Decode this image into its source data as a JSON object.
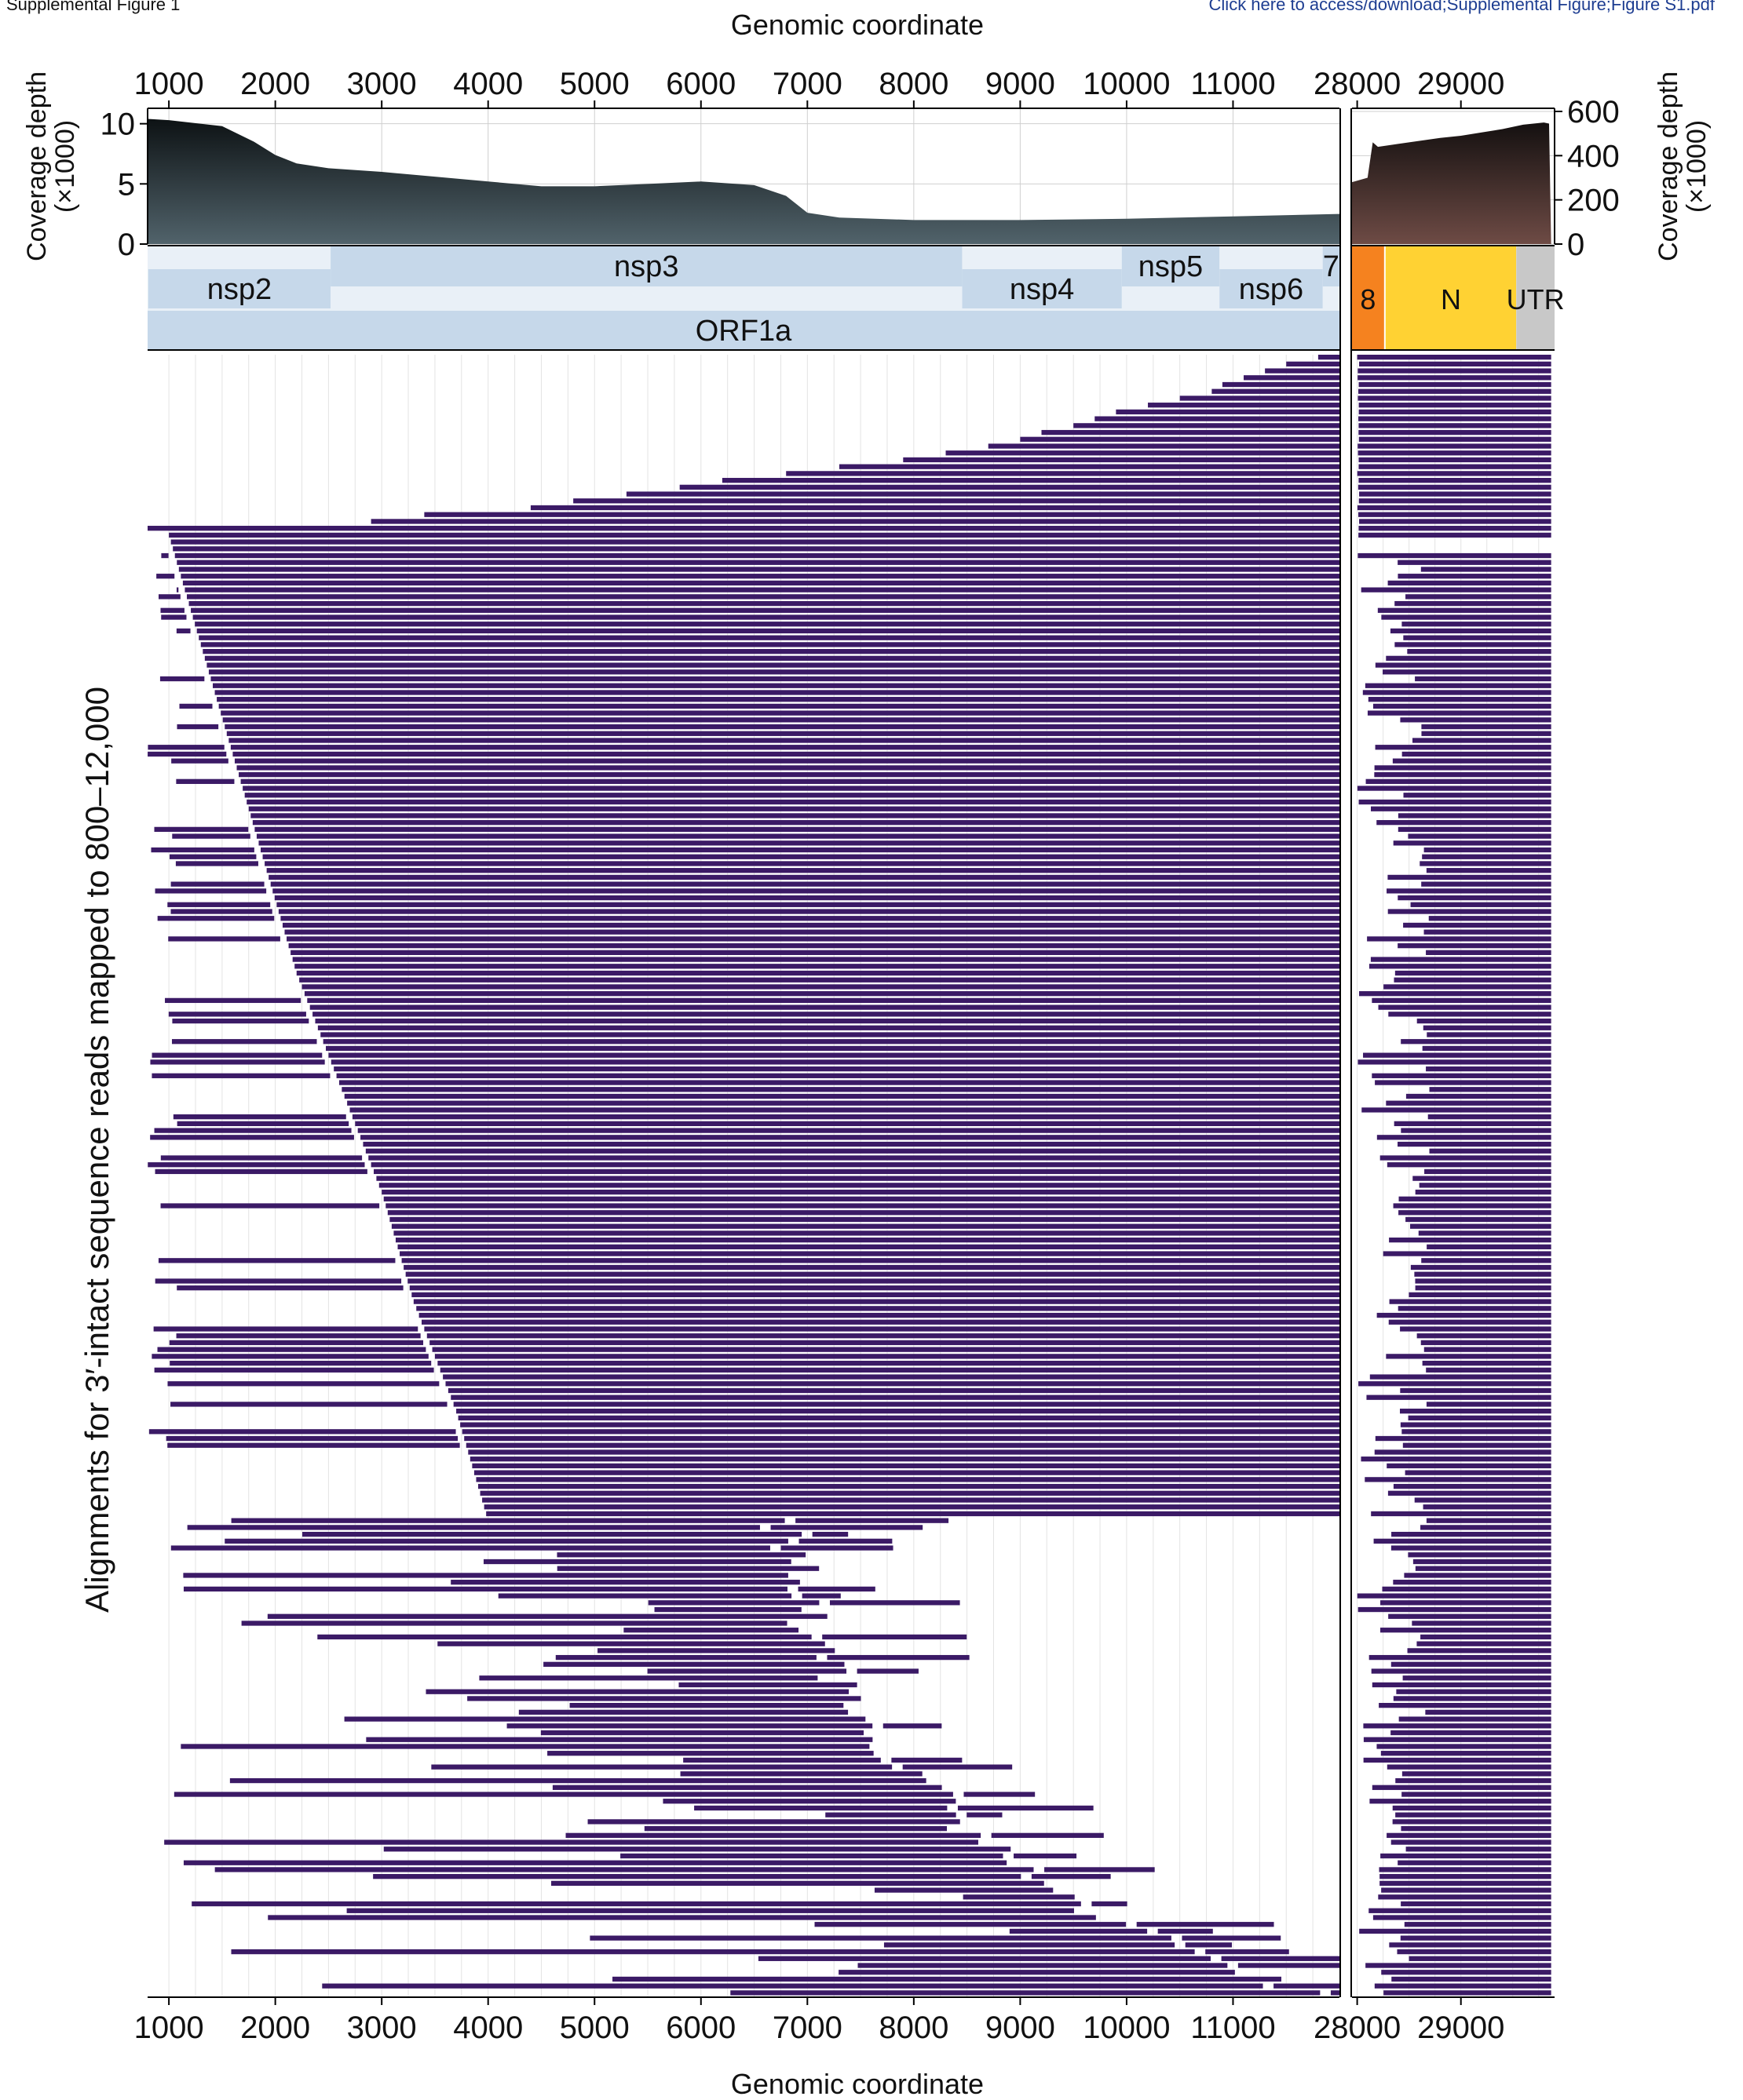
{
  "header": {
    "left_text": "Supplemental Figure 1",
    "right_text": "Click here to access/download;Supplemental Figure;Figure S1.pdf"
  },
  "colors": {
    "read": "#3b1a66",
    "coverage_left_top": "#0d1214",
    "coverage_left_bottom": "#51636b",
    "coverage_right_top": "#141010",
    "coverage_right_bottom": "#6e4b45",
    "gene_track": "#c6d8ea",
    "gene_alt": "#e9f0f7",
    "orf8": "#f5821f",
    "N": "#ffd233",
    "UTR": "#c8c8c8",
    "grid": "#e3e3e3"
  },
  "chart_data": {
    "type": "table",
    "title": "Genomic coordinate",
    "xlabel": "Genomic coordinate",
    "ylabel": "Alignments for 3′-intact sequence reads mapped to 800–12,000",
    "left_panel": {
      "xlim": [
        800,
        12000
      ],
      "x_ticks": [
        1000,
        2000,
        3000,
        4000,
        5000,
        6000,
        7000,
        8000,
        9000,
        10000,
        11000
      ],
      "tick_labels": [
        "1000",
        "2000",
        "3000",
        "4000",
        "5000",
        "6000",
        "7000",
        "8000",
        "9000",
        "10000",
        "11000"
      ]
    },
    "right_panel": {
      "xlim": [
        27950,
        29903
      ],
      "x_ticks": [
        28000,
        29000
      ],
      "tick_labels": [
        "28000",
        "29000"
      ]
    },
    "coverage_left": {
      "ylabel": "Coverage depth\n(×1000)",
      "ylim": [
        0,
        10.5
      ],
      "y_ticks": [
        0,
        5,
        10
      ],
      "y_tick_labels": [
        "0",
        "5",
        "10"
      ],
      "x": [
        800,
        1000,
        1500,
        1800,
        2000,
        2200,
        2500,
        3000,
        3500,
        4000,
        4500,
        5000,
        5500,
        6000,
        6500,
        6800,
        7000,
        7300,
        8000,
        9000,
        10000,
        11000,
        12000
      ],
      "y": [
        10.4,
        10.3,
        9.8,
        8.5,
        7.4,
        6.7,
        6.3,
        6.0,
        5.6,
        5.2,
        4.8,
        4.8,
        5.0,
        5.2,
        4.9,
        4.0,
        2.6,
        2.2,
        2.0,
        2.0,
        2.1,
        2.3,
        2.5
      ]
    },
    "coverage_right": {
      "ylabel": "Coverage depth\n(×1000)",
      "ylim": [
        0,
        600
      ],
      "y_ticks": [
        0,
        200,
        400,
        600
      ],
      "y_tick_labels": [
        "0",
        "200",
        "400",
        "600"
      ],
      "x": [
        27950,
        28100,
        28150,
        28200,
        28500,
        28800,
        29000,
        29200,
        29400,
        29600,
        29800,
        29850,
        29870
      ],
      "y": [
        280,
        300,
        460,
        440,
        460,
        480,
        490,
        505,
        520,
        540,
        550,
        545,
        0
      ]
    },
    "genes_left": [
      {
        "name": "nsp2",
        "start": 806,
        "end": 2519,
        "row": 1
      },
      {
        "name": "nsp3",
        "start": 2520,
        "end": 8454,
        "row": 0
      },
      {
        "name": "nsp4",
        "start": 8455,
        "end": 9954,
        "row": 1
      },
      {
        "name": "nsp5",
        "start": 9955,
        "end": 10872,
        "row": 0
      },
      {
        "name": "nsp6",
        "start": 10873,
        "end": 11842,
        "row": 1
      },
      {
        "name": "7",
        "start": 11843,
        "end": 12000,
        "row": 0
      },
      {
        "name": "ORF1a",
        "start": 800,
        "end": 12000,
        "row": 2
      }
    ],
    "genes_right": [
      {
        "name": "8",
        "start": 27950,
        "end": 28259
      },
      {
        "name": "N",
        "start": 28274,
        "end": 29533
      },
      {
        "name": "UTR",
        "start": 29534,
        "end": 29903
      }
    ],
    "reads": {
      "count": 240,
      "right_panel_range": [
        28000,
        29870
      ],
      "left_starts_top_block": [
        11800,
        11500,
        11300,
        11100,
        10900,
        10800,
        10500,
        10200,
        9900,
        9700,
        9500,
        9200,
        9000,
        8700,
        8300,
        7900,
        7300,
        6800,
        6200,
        5800,
        5300,
        4800,
        4400,
        3400,
        2900,
        800
      ],
      "left_starts_staircase": [
        1000,
        1300,
        1600,
        1900,
        2200,
        2600,
        3000,
        3300,
        3700,
        4000,
        4600,
        5400,
        6300,
        7100,
        7800,
        8600,
        9200,
        10300,
        11500
      ],
      "left_ends_lower_block": [
        6700,
        6950,
        7000,
        7300,
        7600,
        8100,
        8600,
        9300,
        10400,
        11800
      ]
    }
  }
}
